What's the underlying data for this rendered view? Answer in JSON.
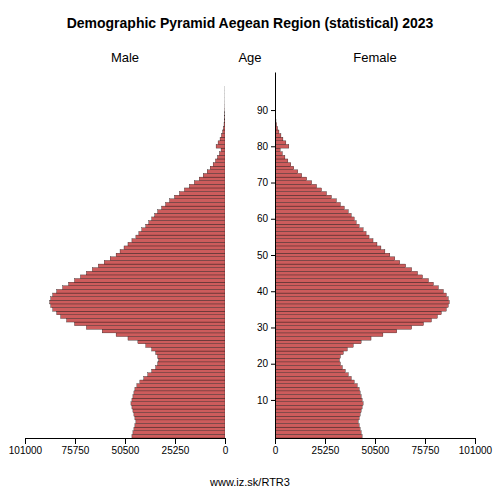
{
  "chart_data": {
    "type": "bar",
    "orientation": "horizontal",
    "title": "Demographic Pyramid Aegean Region (statistical) 2023",
    "ylabel": "Age",
    "footer": "www.iz.sk/RTR3",
    "grid": false,
    "y": [
      0,
      1,
      2,
      3,
      4,
      5,
      6,
      7,
      8,
      9,
      10,
      11,
      12,
      13,
      14,
      15,
      16,
      17,
      18,
      19,
      20,
      21,
      22,
      23,
      24,
      25,
      26,
      27,
      28,
      29,
      30,
      31,
      32,
      33,
      34,
      35,
      36,
      37,
      38,
      39,
      40,
      41,
      42,
      43,
      44,
      45,
      46,
      47,
      48,
      49,
      50,
      51,
      52,
      53,
      54,
      55,
      56,
      57,
      58,
      59,
      60,
      61,
      62,
      63,
      64,
      65,
      66,
      67,
      68,
      69,
      70,
      71,
      72,
      73,
      74,
      75,
      76,
      77,
      78,
      79,
      80,
      81,
      82,
      83,
      84,
      85,
      86,
      87,
      88,
      89,
      90,
      91,
      92,
      93,
      94,
      95,
      96,
      97,
      98,
      99
    ],
    "ylim": [
      -0.5,
      100.5
    ],
    "yticks": [
      10,
      20,
      30,
      40,
      50,
      60,
      70,
      80,
      90
    ],
    "xlim": [
      0,
      101000
    ],
    "xticks": [
      0,
      25250,
      50500,
      75750,
      101000
    ],
    "series": [
      {
        "name": "Male",
        "color": "#cd5c5c",
        "values": [
          47000,
          46500,
          46000,
          45500,
          45000,
          45500,
          46000,
          46500,
          47000,
          47500,
          47000,
          46500,
          46000,
          45500,
          44500,
          43000,
          41000,
          39000,
          37000,
          35000,
          34000,
          33500,
          34000,
          35000,
          37000,
          40000,
          44000,
          49000,
          55000,
          62000,
          70000,
          76000,
          80000,
          83000,
          85000,
          87000,
          88000,
          88500,
          88000,
          87000,
          85000,
          82000,
          79000,
          76000,
          73000,
          70000,
          67000,
          64000,
          61000,
          58000,
          55000,
          53000,
          51000,
          49000,
          47000,
          45000,
          43500,
          42000,
          40000,
          38500,
          37000,
          35500,
          34000,
          32000,
          30000,
          28000,
          25500,
          23000,
          20500,
          18000,
          15500,
          13000,
          11000,
          9000,
          7500,
          6000,
          4800,
          3800,
          2800,
          2000,
          4500,
          3500,
          2500,
          1800,
          1200,
          800,
          500,
          300,
          180,
          100,
          55,
          28,
          14,
          6,
          3,
          1,
          1,
          0,
          0,
          0
        ]
      },
      {
        "name": "Female",
        "color": "#cd5c5c",
        "values": [
          44000,
          43500,
          43000,
          42500,
          42000,
          42500,
          43000,
          43500,
          44000,
          44500,
          44000,
          43500,
          43000,
          42500,
          41500,
          40000,
          38500,
          37000,
          35500,
          34000,
          33000,
          32500,
          33000,
          34500,
          36500,
          39500,
          43500,
          48500,
          54500,
          61500,
          69000,
          75000,
          79000,
          82000,
          84000,
          86500,
          87500,
          88000,
          87500,
          86500,
          85000,
          82500,
          80000,
          77500,
          74500,
          72000,
          69000,
          66000,
          63000,
          60500,
          58000,
          55500,
          53500,
          51500,
          49500,
          47500,
          46000,
          44500,
          42500,
          41000,
          40000,
          38500,
          37000,
          35000,
          33000,
          31000,
          28500,
          26000,
          23500,
          21000,
          18500,
          16000,
          13500,
          11500,
          9500,
          8000,
          6500,
          5000,
          3700,
          2600,
          7000,
          5500,
          4000,
          3000,
          2000,
          1300,
          800,
          500,
          300,
          180,
          100,
          55,
          28,
          14,
          6,
          3,
          1,
          1,
          0,
          0
        ]
      }
    ]
  }
}
